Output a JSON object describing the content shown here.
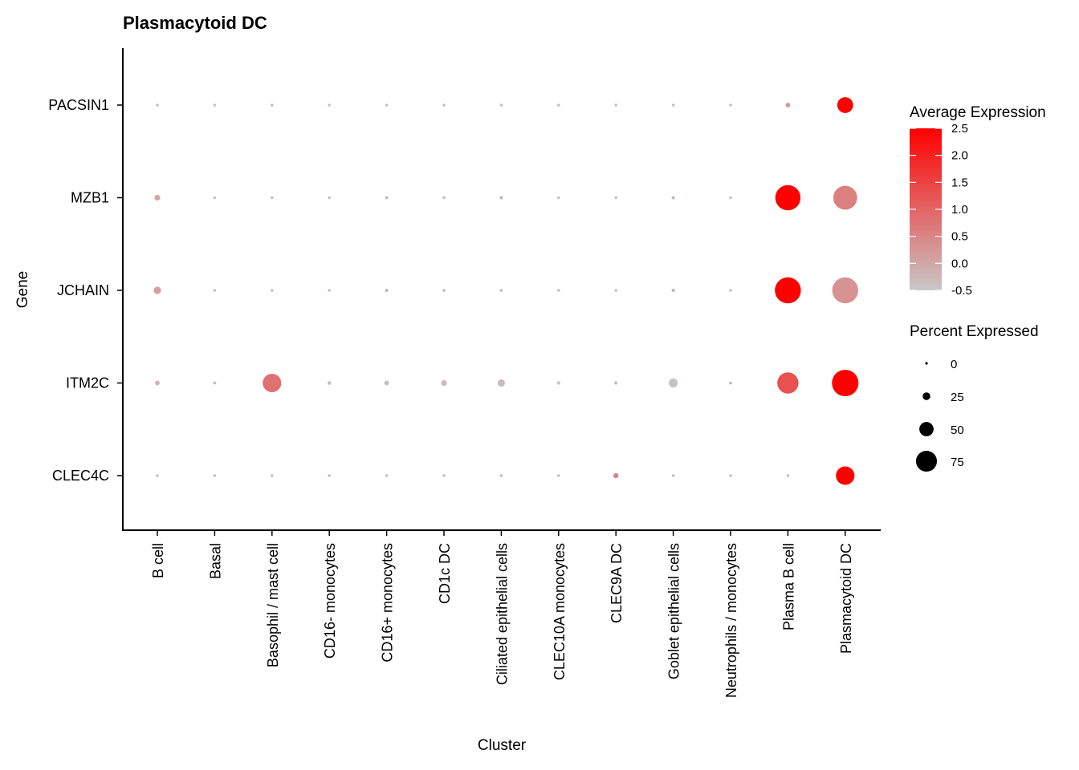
{
  "chart_data": {
    "type": "dot",
    "title": "Plasmacytoid DC",
    "xlabel": "Cluster",
    "ylabel": "Gene",
    "categories": [
      "B cell",
      "Basal",
      "Basophil / mast cell",
      "CD16- monocytes",
      "CD16+ monocytes",
      "CD1c DC",
      "Ciliated epithelial cells",
      "CLEC10A monocytes",
      "CLEC9A DC",
      "Goblet epithelial cells",
      "Neutrophils / monocytes",
      "Plasma B cell",
      "Plasmacytoid DC"
    ],
    "genes": [
      "PACSIN1",
      "MZB1",
      "JCHAIN",
      "ITM2C",
      "CLEC4C"
    ],
    "series": [
      {
        "name": "PACSIN1",
        "avg_expression": [
          -0.3,
          -0.3,
          -0.3,
          -0.3,
          -0.3,
          -0.3,
          -0.3,
          -0.3,
          -0.3,
          -0.3,
          -0.3,
          0.2,
          2.5
        ],
        "pct_expressed": [
          1,
          1,
          1,
          1,
          1,
          1,
          1,
          1,
          1,
          1,
          1,
          8,
          50
        ]
      },
      {
        "name": "MZB1",
        "avg_expression": [
          0.0,
          -0.3,
          -0.3,
          -0.3,
          -0.2,
          -0.3,
          -0.2,
          -0.3,
          -0.3,
          -0.2,
          -0.3,
          2.5,
          0.6
        ],
        "pct_expressed": [
          12,
          1,
          1,
          1,
          2,
          2,
          3,
          1,
          1,
          3,
          1,
          85,
          80
        ]
      },
      {
        "name": "JCHAIN",
        "avg_expression": [
          0.1,
          -0.3,
          -0.3,
          -0.3,
          -0.2,
          -0.3,
          -0.3,
          -0.3,
          -0.3,
          -0.2,
          -0.3,
          2.5,
          0.3
        ],
        "pct_expressed": [
          18,
          1,
          1,
          1,
          3,
          2,
          2,
          1,
          1,
          3,
          1,
          88,
          88
        ]
      },
      {
        "name": "ITM2C",
        "avg_expression": [
          -0.2,
          -0.3,
          0.8,
          -0.3,
          -0.3,
          -0.3,
          -0.3,
          -0.4,
          -0.3,
          -0.4,
          -0.3,
          1.3,
          2.5
        ],
        "pct_expressed": [
          8,
          2,
          60,
          4,
          8,
          12,
          18,
          3,
          3,
          24,
          2,
          70,
          90
        ]
      },
      {
        "name": "CLEC4C",
        "avg_expression": [
          -0.3,
          -0.3,
          -0.3,
          -0.3,
          -0.3,
          -0.3,
          -0.3,
          -0.3,
          0.5,
          -0.3,
          -0.3,
          -0.3,
          2.5
        ],
        "pct_expressed": [
          1,
          1,
          1,
          1,
          1,
          1,
          1,
          1,
          10,
          1,
          1,
          1,
          60
        ]
      }
    ],
    "legend": {
      "color": {
        "title": "Average Expression",
        "ticks": [
          2.5,
          2.0,
          1.5,
          1.0,
          0.5,
          0.0,
          -0.5
        ],
        "tick_labels": [
          "2.5",
          "2.0",
          "1.5",
          "1.0",
          "0.5",
          "0.0",
          "-0.5"
        ],
        "range": [
          -0.5,
          2.5
        ],
        "low_color": "#c8c8c8",
        "high_color": "#ff0000"
      },
      "size": {
        "title": "Percent Expressed",
        "values": [
          0,
          25,
          50,
          75
        ],
        "labels": [
          "0",
          "25",
          "50",
          "75"
        ]
      },
      "placement": "right"
    }
  }
}
